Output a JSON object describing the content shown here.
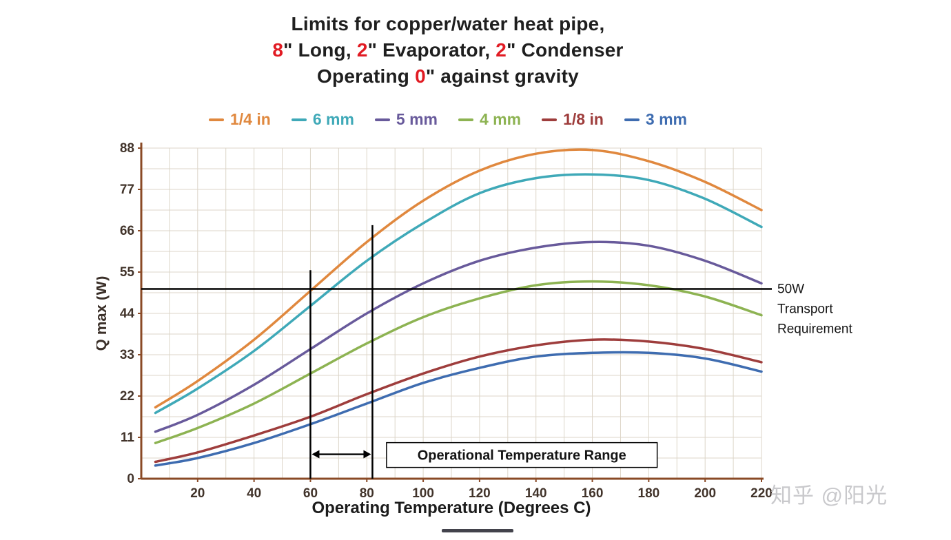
{
  "title": {
    "lines": [
      [
        {
          "t": "Limits for copper/water heat pipe,",
          "red": false
        }
      ],
      [
        {
          "t": "8",
          "red": true
        },
        {
          "t": "\" Long, ",
          "red": false
        },
        {
          "t": "2",
          "red": true
        },
        {
          "t": "\" Evaporator, ",
          "red": false
        },
        {
          "t": "2",
          "red": true
        },
        {
          "t": "\" Condenser",
          "red": false
        }
      ],
      [
        {
          "t": "Operating ",
          "red": false
        },
        {
          "t": "0",
          "red": true
        },
        {
          "t": "\" against gravity",
          "red": false
        }
      ]
    ]
  },
  "colors": {
    "title_dark": "#1f1f1f",
    "title_red": "#e11b23",
    "axis": "#8a4a26",
    "grid": "#dcd5c8",
    "tick_label": "#41332a",
    "axis_label": "#3b3029",
    "annotation": "#141414"
  },
  "chart_data": {
    "type": "line",
    "title": "Limits for copper/water heat pipe, 8\" Long, 2\" Evaporator, 2\" Condenser, Operating 0\" against gravity",
    "xlabel": "Operating Temperature (Degrees C)",
    "ylabel": "Q max (W)",
    "xlim": [
      0,
      220
    ],
    "ylim": [
      0,
      88
    ],
    "x_ticks": [
      20,
      40,
      60,
      80,
      100,
      120,
      140,
      160,
      180,
      200,
      220
    ],
    "y_ticks": [
      0,
      11,
      22,
      33,
      44,
      55,
      66,
      77,
      88
    ],
    "grid": "on",
    "legend_position": "top",
    "x": [
      5,
      20,
      40,
      60,
      80,
      100,
      120,
      140,
      160,
      180,
      200,
      220
    ],
    "series": [
      {
        "name": "1/4 in",
        "color": "#e0883e",
        "values": [
          19,
          26,
          37,
          50,
          63,
          74,
          82,
          86.5,
          87.5,
          84.5,
          79,
          71.5
        ]
      },
      {
        "name": "6 mm",
        "color": "#3fa9b8",
        "values": [
          17.5,
          24,
          34,
          46,
          58,
          68,
          76,
          80,
          81,
          79.5,
          74.5,
          67
        ]
      },
      {
        "name": "5 mm",
        "color": "#685a9b",
        "values": [
          12.5,
          17,
          25,
          34.5,
          44,
          52,
          58,
          61.5,
          63,
          62,
          58,
          52
        ]
      },
      {
        "name": "4 mm",
        "color": "#8db352",
        "values": [
          9.5,
          13.5,
          20,
          28,
          36,
          43,
          48,
          51.5,
          52.5,
          51.5,
          48.5,
          43.5
        ]
      },
      {
        "name": "1/8 in",
        "color": "#9e3d3c",
        "values": [
          4.5,
          7,
          11.5,
          16.5,
          22.5,
          28,
          32.5,
          35.5,
          37,
          36.5,
          34.5,
          31
        ]
      },
      {
        "name": "3 mm",
        "color": "#3e6cb0",
        "values": [
          3.5,
          5.5,
          9.5,
          14.5,
          20,
          25.5,
          29.5,
          32.5,
          33.5,
          33.5,
          32,
          28.5
        ]
      }
    ],
    "annotations": {
      "hline": {
        "y": 50.5,
        "label_lines": [
          "50W",
          "Transport",
          "Requirement"
        ]
      },
      "range": {
        "x1": 60,
        "x2": 82,
        "line1_top": 55.5,
        "line2_top": 67.5,
        "arrow_y": 6.5,
        "box": {
          "x_from": 87,
          "x_to": 183,
          "y_center": 6.3,
          "label": "Operational Temperature Range"
        }
      }
    }
  },
  "watermark": "知乎 @阳光"
}
